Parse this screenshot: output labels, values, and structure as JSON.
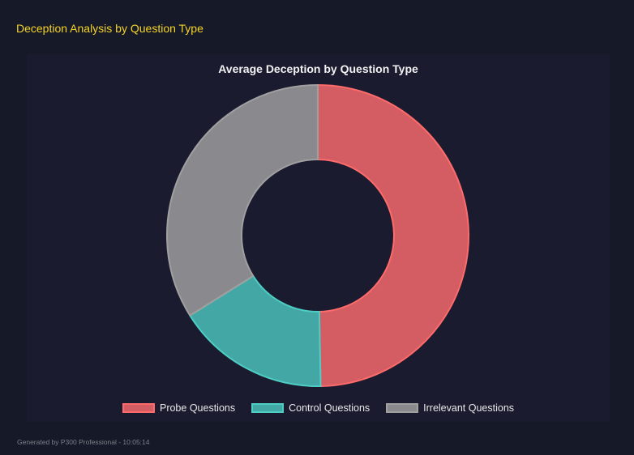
{
  "header": {
    "title": "Deception Analysis by Question Type"
  },
  "chart_data": {
    "type": "pie",
    "variant": "doughnut",
    "title": "Average Deception by Question Type",
    "categories": [
      "Probe Questions",
      "Control Questions",
      "Irrelevant Questions"
    ],
    "values": [
      49.7,
      16.4,
      33.9
    ],
    "colors": {
      "fill": [
        "#d35d62",
        "#43a8a5",
        "#8a898d"
      ],
      "border": [
        "#ff6b6b",
        "#4ecdc4",
        "#a0a0a0"
      ]
    },
    "legend_position": "bottom"
  },
  "footer": {
    "text": "Generated by P300 Professional - 10:05:14"
  }
}
